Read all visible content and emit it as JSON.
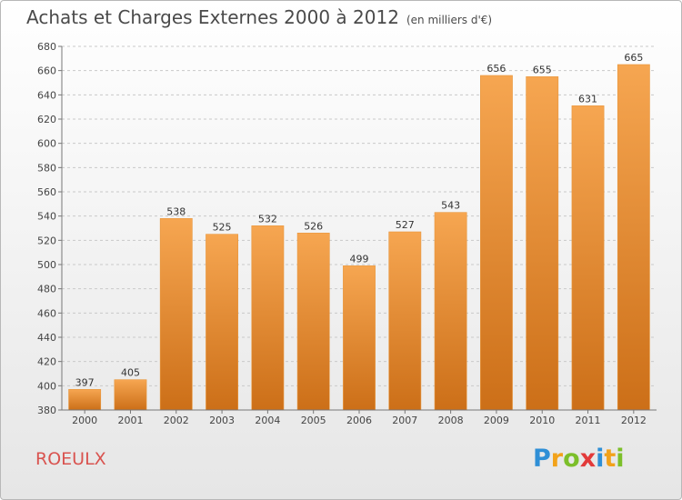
{
  "chart_data": {
    "type": "bar",
    "title": "Achats et Charges Externes 2000 à 2012",
    "subtitle": "(en milliers d'€)",
    "categories": [
      "2000",
      "2001",
      "2002",
      "2003",
      "2004",
      "2005",
      "2006",
      "2007",
      "2008",
      "2009",
      "2010",
      "2011",
      "2012"
    ],
    "values": [
      397,
      405,
      538,
      525,
      532,
      526,
      499,
      527,
      543,
      656,
      655,
      631,
      665
    ],
    "ylim": [
      380,
      680
    ],
    "yticks": [
      380,
      400,
      420,
      440,
      460,
      480,
      500,
      520,
      540,
      560,
      580,
      600,
      620,
      640,
      660,
      680
    ],
    "grid": true,
    "bar_color_top": "#f6a651",
    "bar_color_bottom": "#cc6f18"
  },
  "commune": "ROEULX",
  "logo": {
    "letters": [
      "P",
      "r",
      "o",
      "x",
      "i",
      "t",
      "i"
    ],
    "colors": [
      "#2f8fd6",
      "#f2a21a",
      "#7cbf2a",
      "#e23a3a",
      "#2f8fd6",
      "#f2a21a",
      "#7cbf2a"
    ]
  }
}
